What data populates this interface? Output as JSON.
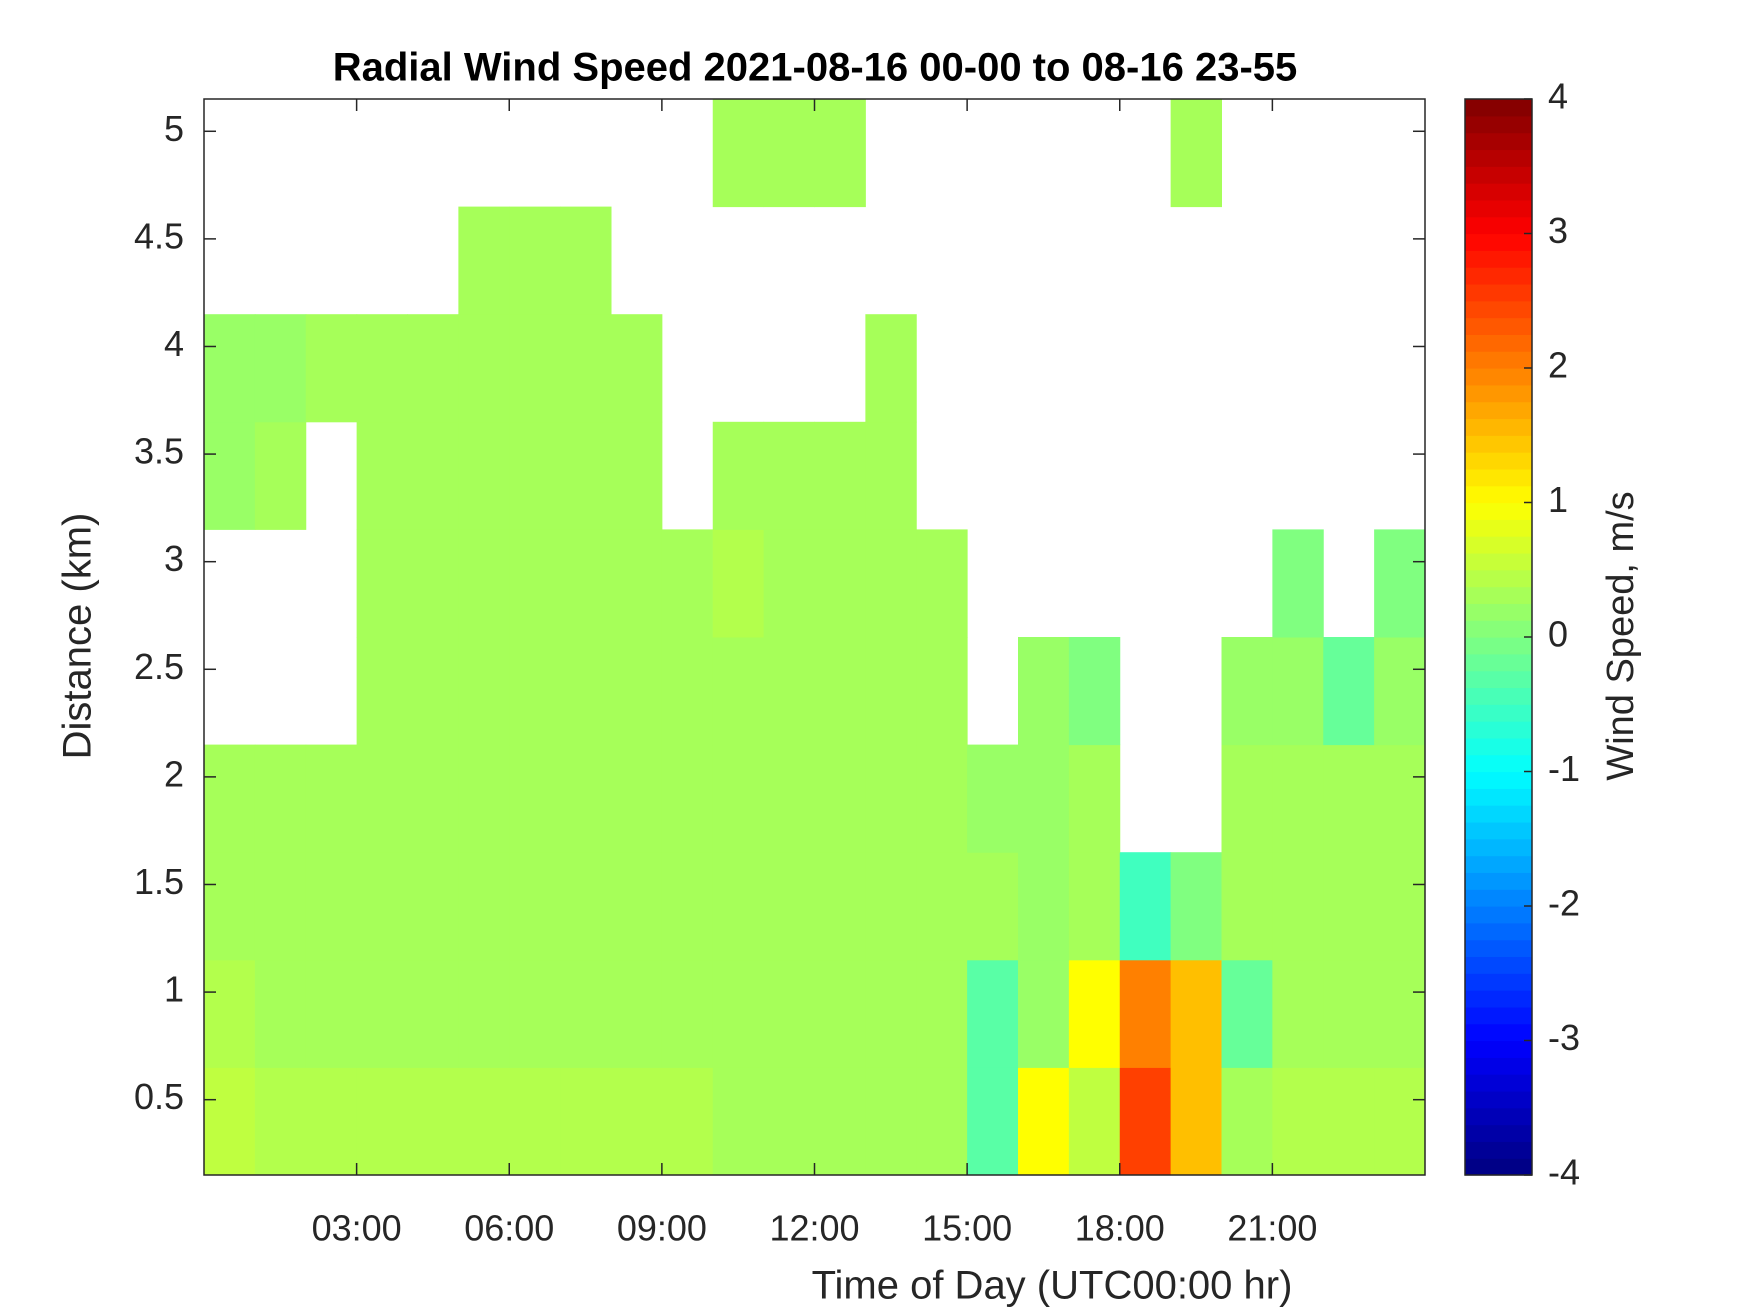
{
  "chart_data": {
    "type": "heatmap",
    "title": "Radial Wind Speed 2021-08-16 00-00 to 08-16 23-55",
    "xlabel": "Time of Day (UTC00:00 hr)",
    "ylabel": "Distance (km)",
    "colorbar_label": "Wind Speed, m/s",
    "colormap": "jet",
    "x": [
      0,
      1,
      2,
      3,
      4,
      5,
      6,
      7,
      8,
      9,
      10,
      11,
      12,
      13,
      14,
      15,
      16,
      17,
      18,
      19,
      20,
      21,
      22,
      23
    ],
    "y": [
      0.15,
      0.65,
      1.15,
      1.65,
      2.15,
      2.65,
      3.15,
      3.65,
      4.15,
      4.65
    ],
    "values": [
      [
        0.5,
        0.4,
        0.4,
        0.4,
        0.4,
        0.4,
        0.4,
        0.4,
        0.4,
        0.4,
        0.3,
        0.3,
        0.3,
        0.3,
        0.3,
        -0.3,
        1.0,
        0.5,
        2.5,
        1.5,
        0.3,
        0.4,
        0.4,
        0.4
      ],
      [
        0.4,
        0.3,
        0.3,
        0.3,
        0.3,
        0.3,
        0.3,
        0.3,
        0.3,
        0.3,
        0.3,
        0.3,
        0.3,
        0.3,
        0.3,
        -0.3,
        0.2,
        1.0,
        2.0,
        1.5,
        -0.2,
        0.3,
        0.3,
        0.3
      ],
      [
        0.3,
        0.3,
        0.3,
        0.3,
        0.3,
        0.3,
        0.3,
        0.3,
        0.3,
        0.3,
        0.3,
        0.3,
        0.3,
        0.3,
        0.3,
        0.3,
        0.2,
        0.3,
        -0.5,
        0.0,
        0.3,
        0.3,
        0.3,
        0.3
      ],
      [
        0.3,
        0.3,
        0.3,
        0.3,
        0.3,
        0.3,
        0.3,
        0.3,
        0.3,
        0.3,
        0.3,
        0.3,
        0.3,
        0.3,
        0.3,
        0.2,
        0.2,
        0.3,
        null,
        null,
        0.3,
        0.3,
        0.3,
        0.3
      ],
      [
        null,
        null,
        null,
        0.3,
        0.3,
        0.3,
        0.3,
        0.3,
        0.3,
        0.3,
        0.3,
        0.3,
        0.3,
        0.3,
        0.3,
        null,
        0.2,
        0.0,
        null,
        null,
        0.2,
        0.2,
        -0.2,
        0.2
      ],
      [
        null,
        null,
        null,
        0.3,
        0.3,
        0.3,
        0.3,
        0.3,
        0.3,
        0.3,
        0.4,
        0.3,
        0.3,
        0.3,
        0.3,
        null,
        null,
        null,
        null,
        null,
        null,
        0.0,
        null,
        0.0
      ],
      [
        0.2,
        0.3,
        null,
        0.3,
        0.3,
        0.3,
        0.3,
        0.3,
        0.3,
        null,
        0.3,
        0.3,
        0.3,
        0.3,
        null,
        null,
        null,
        null,
        null,
        null,
        null,
        null,
        null,
        null
      ],
      [
        0.2,
        0.2,
        0.3,
        0.3,
        0.3,
        0.3,
        0.3,
        0.3,
        0.3,
        null,
        null,
        null,
        null,
        0.3,
        null,
        null,
        null,
        null,
        null,
        null,
        null,
        null,
        null,
        null
      ],
      [
        null,
        null,
        null,
        null,
        null,
        0.3,
        0.3,
        0.3,
        null,
        null,
        null,
        null,
        null,
        null,
        null,
        null,
        null,
        null,
        null,
        null,
        null,
        null,
        null,
        null
      ],
      [
        null,
        null,
        null,
        null,
        null,
        null,
        null,
        null,
        null,
        null,
        0.3,
        0.3,
        0.3,
        null,
        null,
        null,
        null,
        null,
        null,
        0.3,
        null,
        null,
        null,
        null
      ]
    ],
    "xlim": [
      0,
      24
    ],
    "xticks": [
      {
        "value": 3,
        "label": "03:00"
      },
      {
        "value": 6,
        "label": "06:00"
      },
      {
        "value": 9,
        "label": "09:00"
      },
      {
        "value": 12,
        "label": "12:00"
      },
      {
        "value": 15,
        "label": "15:00"
      },
      {
        "value": 18,
        "label": "18:00"
      },
      {
        "value": 21,
        "label": "21:00"
      }
    ],
    "ylim": [
      0.15,
      5.15
    ],
    "yticks": [
      0.5,
      1,
      1.5,
      2,
      2.5,
      3,
      3.5,
      4,
      4.5,
      5
    ],
    "clim": [
      -4,
      4
    ],
    "cticks": [
      -4,
      -3,
      -2,
      -1,
      0,
      1,
      2,
      3,
      4
    ]
  }
}
